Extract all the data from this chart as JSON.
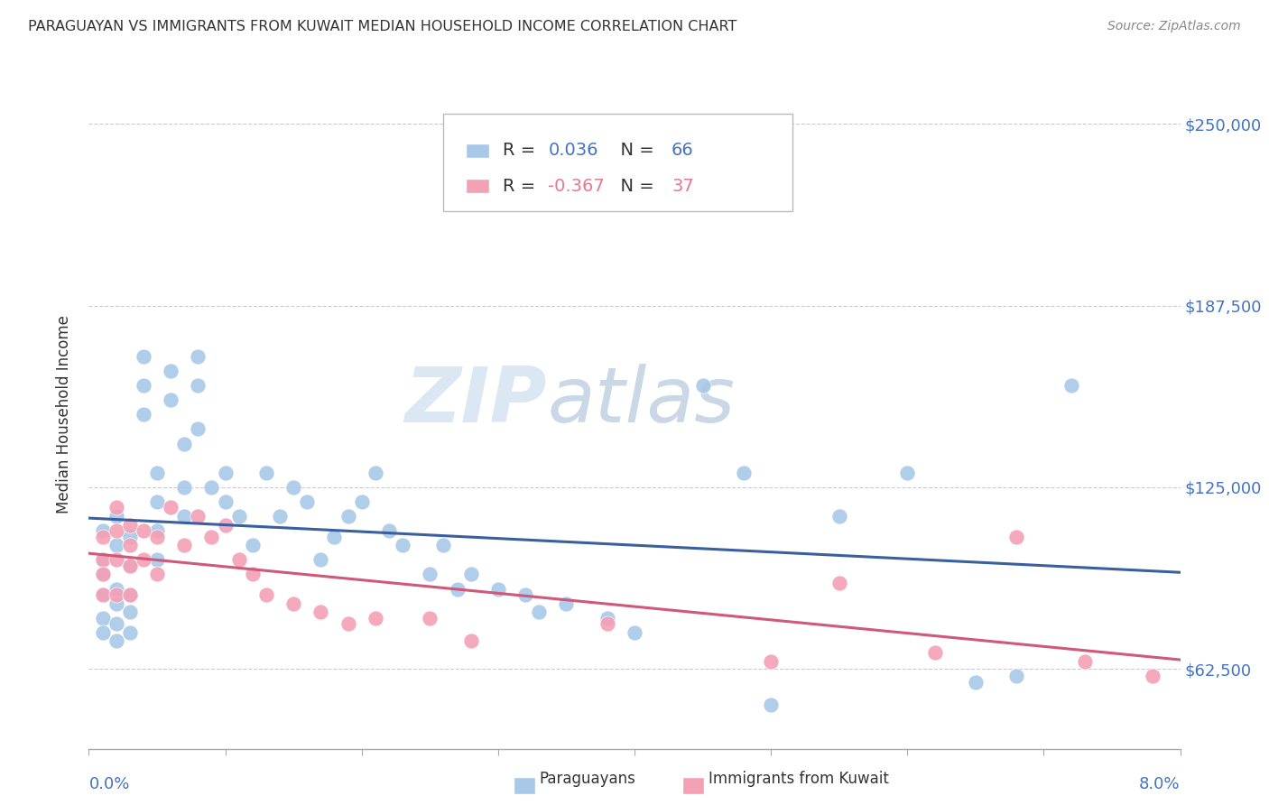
{
  "title": "PARAGUAYAN VS IMMIGRANTS FROM KUWAIT MEDIAN HOUSEHOLD INCOME CORRELATION CHART",
  "source": "Source: ZipAtlas.com",
  "ylabel": "Median Household Income",
  "xlim": [
    0.0,
    0.08
  ],
  "ylim": [
    35000,
    265000
  ],
  "watermark_zip": "ZIP",
  "watermark_atlas": "atlas",
  "color_blue": "#A8C8E8",
  "color_pink": "#F4A0B5",
  "line_color_blue": "#3A5FA0",
  "line_color_pink": "#D05878",
  "ytick_vals": [
    62500,
    125000,
    187500,
    250000
  ],
  "ytick_labels": [
    "$62,500",
    "$125,000",
    "$187,500",
    "$250,000"
  ],
  "paraguayan_x": [
    0.001,
    0.001,
    0.001,
    0.001,
    0.001,
    0.001,
    0.002,
    0.002,
    0.002,
    0.002,
    0.002,
    0.002,
    0.003,
    0.003,
    0.003,
    0.003,
    0.003,
    0.004,
    0.004,
    0.004,
    0.005,
    0.005,
    0.005,
    0.005,
    0.006,
    0.006,
    0.007,
    0.007,
    0.007,
    0.008,
    0.008,
    0.008,
    0.009,
    0.01,
    0.01,
    0.011,
    0.012,
    0.013,
    0.014,
    0.015,
    0.016,
    0.017,
    0.018,
    0.019,
    0.02,
    0.021,
    0.022,
    0.023,
    0.025,
    0.026,
    0.027,
    0.028,
    0.03,
    0.032,
    0.033,
    0.035,
    0.038,
    0.04,
    0.045,
    0.048,
    0.05,
    0.055,
    0.06,
    0.065,
    0.068,
    0.072
  ],
  "paraguayan_y": [
    100000,
    110000,
    95000,
    88000,
    80000,
    75000,
    105000,
    115000,
    90000,
    85000,
    78000,
    72000,
    108000,
    98000,
    88000,
    82000,
    75000,
    160000,
    150000,
    170000,
    130000,
    120000,
    110000,
    100000,
    165000,
    155000,
    140000,
    125000,
    115000,
    170000,
    160000,
    145000,
    125000,
    130000,
    120000,
    115000,
    105000,
    130000,
    115000,
    125000,
    120000,
    100000,
    108000,
    115000,
    120000,
    130000,
    110000,
    105000,
    95000,
    105000,
    90000,
    95000,
    90000,
    88000,
    82000,
    85000,
    80000,
    75000,
    160000,
    130000,
    50000,
    115000,
    130000,
    58000,
    60000,
    160000
  ],
  "kuwait_x": [
    0.001,
    0.001,
    0.001,
    0.001,
    0.002,
    0.002,
    0.002,
    0.002,
    0.003,
    0.003,
    0.003,
    0.003,
    0.004,
    0.004,
    0.005,
    0.005,
    0.006,
    0.007,
    0.008,
    0.009,
    0.01,
    0.011,
    0.012,
    0.013,
    0.015,
    0.017,
    0.019,
    0.021,
    0.025,
    0.028,
    0.038,
    0.05,
    0.055,
    0.062,
    0.068,
    0.073,
    0.078
  ],
  "kuwait_y": [
    100000,
    108000,
    95000,
    88000,
    118000,
    110000,
    100000,
    88000,
    112000,
    105000,
    98000,
    88000,
    110000,
    100000,
    108000,
    95000,
    118000,
    105000,
    115000,
    108000,
    112000,
    100000,
    95000,
    88000,
    85000,
    82000,
    78000,
    80000,
    80000,
    72000,
    78000,
    65000,
    92000,
    68000,
    108000,
    65000,
    60000
  ]
}
